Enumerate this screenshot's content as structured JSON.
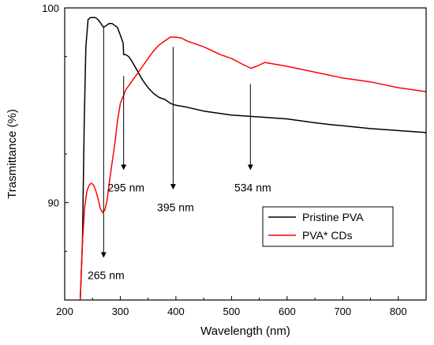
{
  "chart_data": {
    "type": "line",
    "title": "",
    "xlabel": "Wavelength (nm)",
    "ylabel": "Trasmittance (%)",
    "xlim": [
      200,
      850
    ],
    "ylim": [
      85,
      100
    ],
    "xticks": [
      200,
      300,
      400,
      500,
      600,
      700,
      800
    ],
    "yticks": [
      90,
      100
    ],
    "legend_position": "lower-right",
    "grid": false,
    "series": [
      {
        "name": "Pristine PVA",
        "color": "#000000",
        "x": [
          228,
          232,
          235,
          238,
          242,
          246,
          250,
          255,
          260,
          265,
          270,
          275,
          280,
          285,
          290,
          295,
          300,
          305,
          306,
          310,
          315,
          320,
          330,
          340,
          350,
          360,
          370,
          380,
          390,
          400,
          420,
          450,
          500,
          550,
          600,
          650,
          680,
          700,
          750,
          800,
          850
        ],
        "y": [
          85.0,
          88.0,
          94.0,
          98.0,
          99.4,
          99.5,
          99.5,
          99.5,
          99.4,
          99.2,
          99.0,
          99.1,
          99.2,
          99.2,
          99.1,
          99.0,
          98.6,
          98.2,
          97.6,
          97.6,
          97.5,
          97.3,
          96.8,
          96.3,
          95.9,
          95.6,
          95.4,
          95.3,
          95.1,
          95.0,
          94.9,
          94.7,
          94.5,
          94.4,
          94.3,
          94.1,
          94.0,
          93.95,
          93.8,
          93.7,
          93.6
        ]
      },
      {
        "name": "PVA* CDs",
        "color": "#ff0000",
        "x": [
          228,
          232,
          236,
          240,
          244,
          248,
          252,
          256,
          260,
          264,
          268,
          272,
          276,
          280,
          285,
          290,
          295,
          300,
          310,
          320,
          330,
          340,
          350,
          360,
          370,
          380,
          390,
          400,
          410,
          420,
          450,
          480,
          500,
          520,
          535,
          545,
          560,
          600,
          650,
          700,
          750,
          800,
          850
        ],
        "y": [
          85.0,
          88.0,
          89.8,
          90.6,
          90.9,
          91.0,
          90.9,
          90.6,
          90.2,
          89.7,
          89.5,
          89.6,
          90.1,
          91.0,
          92.0,
          93.0,
          94.2,
          95.1,
          95.8,
          96.2,
          96.6,
          97.0,
          97.4,
          97.8,
          98.1,
          98.3,
          98.5,
          98.5,
          98.45,
          98.3,
          98.0,
          97.6,
          97.4,
          97.1,
          96.9,
          97.0,
          97.2,
          97.0,
          96.7,
          96.4,
          96.2,
          95.9,
          95.7
        ]
      }
    ],
    "annotations": [
      {
        "text": "265 nm",
        "x": 270,
        "arrow_from_y": 99.0,
        "arrow_to_y": 87.2
      },
      {
        "text": "295 nm",
        "x": 306,
        "arrow_from_y": 96.5,
        "arrow_to_y": 91.7
      },
      {
        "text": "395 nm",
        "x": 395,
        "arrow_from_y": 98.0,
        "arrow_to_y": 90.7
      },
      {
        "text": "534 nm",
        "x": 534,
        "arrow_from_y": 96.1,
        "arrow_to_y": 91.7
      }
    ]
  }
}
